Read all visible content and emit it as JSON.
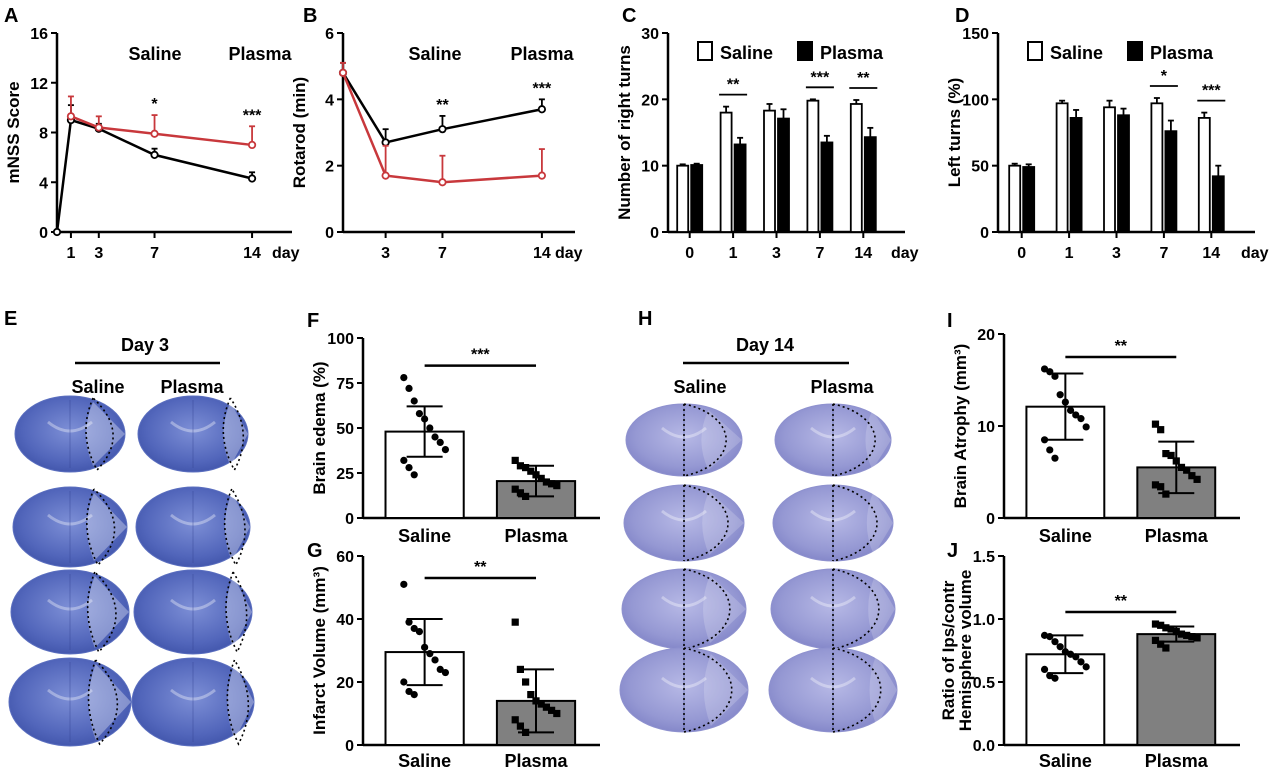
{
  "chart_data": [
    {
      "letter": "A",
      "type": "line",
      "ylabel": "mNSS Score",
      "xunit": "day",
      "ylim": [
        0,
        16
      ],
      "yticks": [
        0,
        4,
        8,
        12,
        16
      ],
      "xlim": [
        0,
        15
      ],
      "xticks": [
        1,
        3,
        7,
        14
      ],
      "labels": [
        "Saline",
        "Plasma"
      ],
      "series": [
        {
          "x": [
            0,
            1,
            3,
            7,
            14
          ],
          "values": [
            0,
            9.0,
            8.3,
            6.2,
            4.3
          ],
          "err": [
            0,
            1.2,
            0.4,
            0.5,
            0.5
          ],
          "color": "#000000"
        },
        {
          "x": [
            1,
            3,
            7,
            14
          ],
          "values": [
            9.3,
            8.4,
            7.9,
            7.0
          ],
          "err": [
            1.6,
            0.9,
            1.5,
            1.5
          ],
          "color": "#c8383c"
        }
      ],
      "significance": [
        {
          "x": 7,
          "text": "*"
        },
        {
          "x": 14,
          "text": "***"
        }
      ]
    },
    {
      "letter": "B",
      "type": "line",
      "ylabel": "Rotarod (min)",
      "xunit": "day",
      "ylim": [
        0,
        6
      ],
      "yticks": [
        0,
        2,
        4,
        6
      ],
      "xlim": [
        0,
        14.5
      ],
      "xticks": [
        3,
        7,
        14
      ],
      "labels": [
        "Saline",
        "Plasma"
      ],
      "series": [
        {
          "x": [
            0,
            3,
            7,
            14
          ],
          "values": [
            4.8,
            2.7,
            3.1,
            3.7
          ],
          "err": [
            0.3,
            0.4,
            0.4,
            0.3
          ],
          "color": "#000000"
        },
        {
          "x": [
            0,
            3,
            7,
            14
          ],
          "values": [
            4.8,
            1.7,
            1.5,
            1.7
          ],
          "err": [
            0.3,
            0.9,
            0.8,
            0.8
          ],
          "color": "#c8383c"
        }
      ],
      "significance": [
        {
          "x": 7,
          "text": "**"
        },
        {
          "x": 14,
          "text": "***"
        }
      ]
    },
    {
      "letter": "C",
      "type": "bar",
      "ylabel": "Number of right turns",
      "xunit": "day",
      "ylim": [
        0,
        30
      ],
      "yticks": [
        0,
        10,
        20,
        30
      ],
      "categories": [
        "0",
        "1",
        "3",
        "7",
        "14"
      ],
      "legend": [
        "Saline",
        "Plasma"
      ],
      "series": [
        {
          "values": [
            10,
            18,
            18.3,
            19.8,
            19.3
          ],
          "err": [
            0.2,
            0.9,
            1.0,
            0.2,
            0.6
          ],
          "fill": "#ffffff"
        },
        {
          "values": [
            10.1,
            13.2,
            17.1,
            13.5,
            14.3
          ],
          "err": [
            0.2,
            1.0,
            1.4,
            1.0,
            1.4
          ],
          "fill": "#000000"
        }
      ],
      "significance": [
        {
          "i": 1,
          "text": "**"
        },
        {
          "i": 3,
          "text": "***"
        },
        {
          "i": 4,
          "text": "**"
        }
      ]
    },
    {
      "letter": "D",
      "type": "bar",
      "ylabel": "Left turns (%)",
      "xunit": "day",
      "ylim": [
        0,
        150
      ],
      "yticks": [
        0,
        50,
        100,
        150
      ],
      "categories": [
        "0",
        "1",
        "3",
        "7",
        "14"
      ],
      "legend": [
        "Saline",
        "Plasma"
      ],
      "series": [
        {
          "values": [
            50,
            97,
            94,
            97,
            86
          ],
          "err": [
            1.5,
            2,
            5,
            4,
            4
          ],
          "fill": "#ffffff"
        },
        {
          "values": [
            49,
            86,
            88,
            76,
            42
          ],
          "err": [
            2,
            6,
            5,
            8,
            8
          ],
          "fill": "#000000"
        }
      ],
      "significance": [
        {
          "i": 3,
          "text": "*"
        },
        {
          "i": 4,
          "text": "***"
        }
      ]
    },
    {
      "letter": "F",
      "type": "bar",
      "ylabel": "Brain edema (%)",
      "ylim": [
        0,
        100
      ],
      "yticks": [
        0,
        25,
        50,
        75,
        100
      ],
      "categories": [
        "Saline",
        "Plasma"
      ],
      "values": [
        48,
        20.5
      ],
      "sd": [
        14,
        8.5
      ],
      "fills": [
        "#ffffff",
        "#808080"
      ],
      "points": [
        [
          78,
          72,
          65,
          58,
          55,
          50,
          45,
          42,
          38,
          32,
          28,
          24
        ],
        [
          32,
          29,
          28,
          26,
          24,
          22,
          20,
          19,
          18,
          16,
          14,
          12
        ]
      ],
      "significance": "***"
    },
    {
      "letter": "G",
      "type": "bar",
      "ylabel": "Infarct Volume (mm³)",
      "ylim": [
        0,
        60
      ],
      "yticks": [
        0,
        20,
        40,
        60
      ],
      "categories": [
        "Saline",
        "Plasma"
      ],
      "values": [
        29.5,
        14
      ],
      "sd": [
        10.5,
        10
      ],
      "fills": [
        "#ffffff",
        "#808080"
      ],
      "points": [
        [
          51,
          39,
          37,
          36,
          31,
          29,
          27,
          24,
          23,
          20,
          17,
          16
        ],
        [
          39,
          24,
          20,
          16,
          14,
          13,
          12,
          11,
          10,
          8,
          6,
          4
        ]
      ],
      "significance": "**"
    },
    {
      "letter": "I",
      "type": "bar",
      "ylabel": "Brain Atrophy (mm³)",
      "ylim": [
        0,
        20
      ],
      "yticks": [
        0,
        10,
        20
      ],
      "categories": [
        "Saline",
        "Plasma"
      ],
      "values": [
        12.1,
        5.5
      ],
      "sd": [
        3.6,
        2.8
      ],
      "fills": [
        "#ffffff",
        "#808080"
      ],
      "points": [
        [
          16.2,
          15.9,
          15.4,
          13.4,
          12.6,
          11.7,
          11.2,
          10.8,
          9.9,
          8.5,
          7.4,
          6.5
        ],
        [
          10.2,
          9.6,
          7.0,
          6.8,
          6.2,
          5.5,
          5.2,
          4.6,
          4.2,
          3.6,
          3.4,
          2.6
        ]
      ],
      "significance": "**"
    },
    {
      "letter": "J",
      "type": "bar",
      "ylabel": "Ratio of Ips/contr",
      "ylabel2": "Hemisphere volume",
      "ylim": [
        0,
        1.5
      ],
      "yticks": [
        0.0,
        0.5,
        1.0,
        1.5
      ],
      "tickfmt": 1,
      "categories": [
        "Saline",
        "Plasma"
      ],
      "values": [
        0.72,
        0.88
      ],
      "sd": [
        0.15,
        0.06
      ],
      "fills": [
        "#ffffff",
        "#808080"
      ],
      "points": [
        [
          0.87,
          0.86,
          0.82,
          0.78,
          0.74,
          0.72,
          0.7,
          0.66,
          0.62,
          0.6,
          0.55,
          0.53
        ],
        [
          0.96,
          0.95,
          0.93,
          0.92,
          0.9,
          0.88,
          0.87,
          0.86,
          0.85,
          0.83,
          0.8,
          0.77
        ]
      ],
      "significance": "**"
    }
  ],
  "slices": [
    {
      "letter": "E",
      "title": "Day 3",
      "labels": [
        "Saline",
        "Plasma"
      ],
      "shape": "rounded",
      "tint": "#5b6fbf"
    },
    {
      "letter": "H",
      "title": "Day 14",
      "labels": [
        "Saline",
        "Plasma"
      ],
      "shape": "ellipse",
      "tint": "#8f92cf"
    }
  ]
}
